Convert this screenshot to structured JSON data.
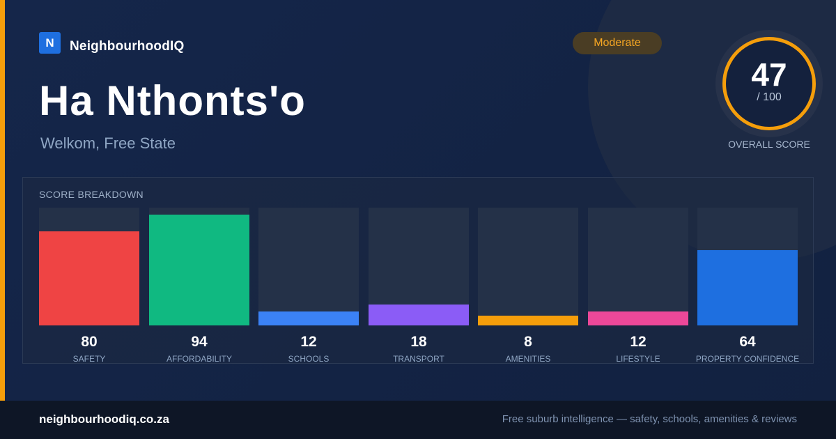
{
  "brand": {
    "logo_letter": "N",
    "name": "NeighbourhoodIQ"
  },
  "suburb": {
    "name": "Ha Nthonts'o",
    "location": "Welkom, Free State"
  },
  "rating": {
    "label": "Moderate",
    "color": "#f5a623"
  },
  "overall": {
    "score": "47",
    "max": "/ 100",
    "caption": "OVERALL SCORE",
    "ring_color": "#f59e0b"
  },
  "breakdown_title": "SCORE BREAKDOWN",
  "chart_data": {
    "type": "bar",
    "title": "SCORE BREAKDOWN",
    "categories": [
      "SAFETY",
      "AFFORDABILITY",
      "SCHOOLS",
      "TRANSPORT",
      "AMENITIES",
      "LIFESTYLE",
      "PROPERTY CONFIDENCE"
    ],
    "values": [
      80,
      94,
      12,
      18,
      8,
      12,
      64
    ],
    "colors": [
      "#ef4444",
      "#10b981",
      "#3b82f6",
      "#8b5cf6",
      "#f59e0b",
      "#ec4899",
      "#1e6fe0"
    ],
    "ylim": [
      0,
      100
    ],
    "grid": false,
    "legend": "none"
  },
  "footer": {
    "url": "neighbourhoodiq.co.za",
    "tagline": "Free suburb intelligence — safety, schools, amenities & reviews"
  }
}
